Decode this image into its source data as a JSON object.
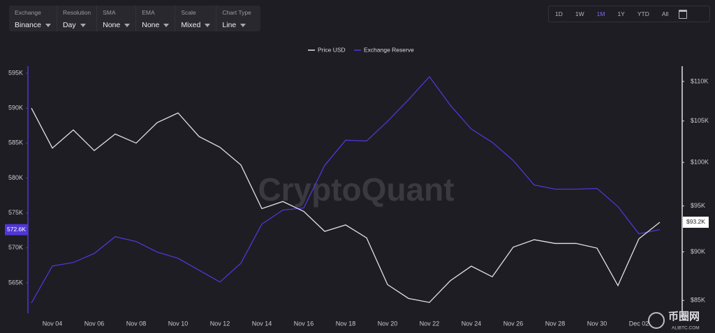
{
  "ui": {
    "toolbar": [
      {
        "label": "Exchange",
        "value": "Binance"
      },
      {
        "label": "Resolution",
        "value": "Day"
      },
      {
        "label": "SMA",
        "value": "None"
      },
      {
        "label": "EMA",
        "value": "None"
      },
      {
        "label": "Scale",
        "value": "Mixed"
      },
      {
        "label": "Chart Type",
        "value": "Line"
      }
    ],
    "range_buttons": [
      "1D",
      "1W",
      "1M",
      "1Y",
      "YTD",
      "All"
    ],
    "active_range": 2,
    "watermark": "CryptoQuant",
    "logo": "币圈网",
    "logo_site": "ALIBTC.COM"
  },
  "chart_data": {
    "type": "line",
    "categories": [
      null,
      "Nov 04",
      null,
      "Nov 06",
      null,
      "Nov 08",
      null,
      "Nov 10",
      null,
      "Nov 12",
      null,
      "Nov 14",
      null,
      "Nov 16",
      null,
      "Nov 18",
      null,
      "Nov 20",
      null,
      "Nov 22",
      null,
      "Nov 24",
      null,
      "Nov 26",
      null,
      "Nov 28",
      null,
      "Nov 30",
      null,
      "Dec 02",
      null
    ],
    "series": [
      {
        "name": "Price USD",
        "color": "#e2e2e6",
        "axis": "y2",
        "values": [
          106600,
          101700,
          103900,
          101400,
          103400,
          102300,
          104800,
          106000,
          103100,
          101800,
          99700,
          94700,
          95500,
          94400,
          92200,
          92900,
          91500,
          86600,
          85200,
          84800,
          87000,
          88500,
          87400,
          90500,
          91300,
          90900,
          90900,
          90400,
          86500,
          91400,
          93200
        ],
        "value_labels": [
          null,
          null,
          null,
          null,
          null,
          null,
          null,
          null,
          null,
          null,
          null,
          null,
          null,
          null,
          null,
          null,
          null,
          null,
          null,
          null,
          null,
          null,
          null,
          null,
          null,
          null,
          null,
          null,
          null,
          null,
          "$93.2K"
        ]
      },
      {
        "name": "Exchange Reserve",
        "color": "#5036d6",
        "values": [
          562100,
          567400,
          567900,
          569200,
          571600,
          570900,
          569400,
          568500,
          566800,
          565100,
          567800,
          573400,
          575400,
          575700,
          581800,
          585400,
          585300,
          588100,
          591200,
          594500,
          590400,
          587000,
          585100,
          582500,
          579000,
          578400,
          578400,
          578500,
          575900,
          572000,
          572600
        ],
        "value_labels": [
          null,
          null,
          null,
          null,
          null,
          null,
          null,
          null,
          null,
          null,
          null,
          null,
          null,
          null,
          null,
          null,
          null,
          null,
          null,
          null,
          null,
          null,
          null,
          null,
          null,
          null,
          null,
          null,
          null,
          null,
          "572.6K"
        ]
      }
    ],
    "ylim": [
      560600,
      596000
    ],
    "yticks": [
      {
        "value": 565000,
        "label": "565K"
      },
      {
        "value": 570000,
        "label": "570K"
      },
      {
        "value": 575000,
        "label": "575K"
      },
      {
        "value": 580000,
        "label": "580K"
      },
      {
        "value": 585000,
        "label": "585K"
      },
      {
        "value": 590000,
        "label": "590K"
      },
      {
        "value": 595000,
        "label": "595K"
      }
    ],
    "y2lim": [
      83700,
      112000
    ],
    "y2ticks": [
      {
        "value": 85000,
        "label": "$85K"
      },
      {
        "value": 90000,
        "label": "$90K"
      },
      {
        "value": 95000,
        "label": "$95K"
      },
      {
        "value": 100000,
        "label": "$100K"
      },
      {
        "value": 105000,
        "label": "$105K"
      },
      {
        "value": 110000,
        "label": "$110K"
      }
    ],
    "y2_log": true,
    "grid": false,
    "legend": "top"
  }
}
